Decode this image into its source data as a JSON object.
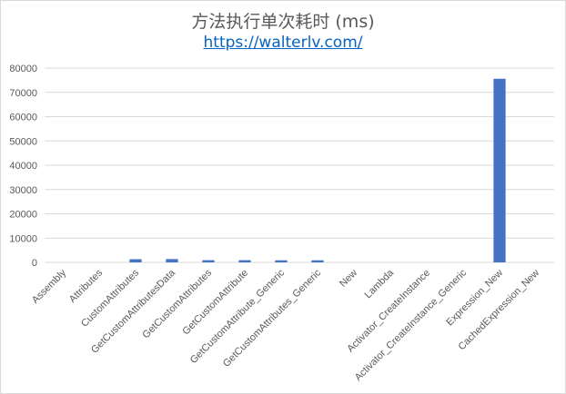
{
  "chart_data": {
    "type": "bar",
    "title": "方法执行单次耗时 (ms)",
    "subtitle": "https://walterlv.com/",
    "xlabel": "",
    "ylabel": "",
    "ylim": [
      0,
      80000
    ],
    "yticks": [
      "0",
      "10000",
      "20000",
      "30000",
      "40000",
      "50000",
      "60000",
      "70000",
      "80000"
    ],
    "grid": true,
    "categories": [
      "Assembly",
      "Attributes",
      "CustomAttributes",
      "GetCustomAttributesData",
      "GetCustomAttributes",
      "GetCustomAttribute",
      "GetCustomAttribute_Generic",
      "GetCustomAttributes_Generic",
      "New",
      "Lambda",
      "Activator_CreateInstance",
      "Activator_CreateInstance_Generic",
      "Expression_New",
      "CachedExpression_New"
    ],
    "values": [
      0,
      0,
      1300,
      1350,
      900,
      900,
      850,
      850,
      0,
      0,
      0,
      0,
      75600,
      0
    ],
    "colors": {
      "bar": "#4472c4",
      "grid": "#d9d9d9",
      "text": "#595959",
      "link": "#0563c1"
    }
  }
}
